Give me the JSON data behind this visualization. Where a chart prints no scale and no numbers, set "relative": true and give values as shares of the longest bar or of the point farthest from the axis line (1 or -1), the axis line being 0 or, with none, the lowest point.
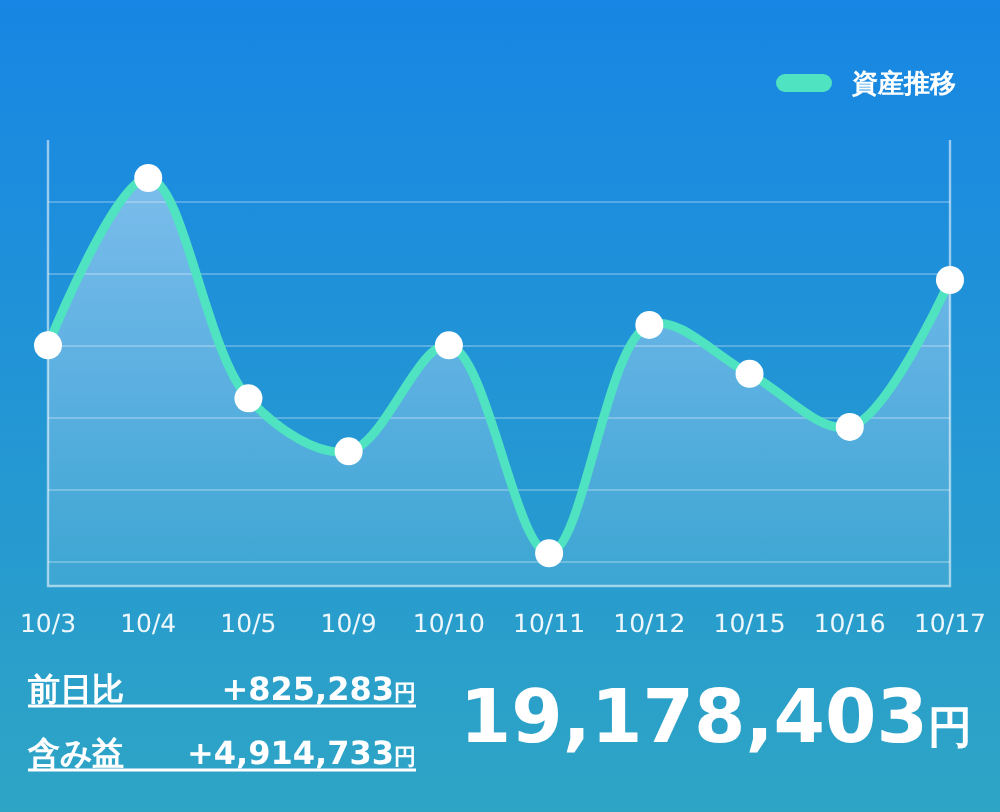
{
  "chart_data": {
    "type": "area",
    "relative": true,
    "categories": [
      "10/3",
      "10/4",
      "10/5",
      "10/9",
      "10/10",
      "10/11",
      "10/12",
      "10/15",
      "10/16",
      "10/17"
    ],
    "series": [
      {
        "name": "資産推移",
        "color": "#4fe3c1",
        "values": [
          0.59,
          1,
          0.46,
          0.33,
          0.59,
          0.08,
          0.64,
          0.52,
          0.39,
          0.75
        ]
      }
    ],
    "marker": "circle",
    "grid": "y",
    "legend": "top right",
    "annotations": [
      "前日比",
      "+825,283円",
      "含み益",
      "+4,914,733円",
      "19,178,403円"
    ]
  }
}
